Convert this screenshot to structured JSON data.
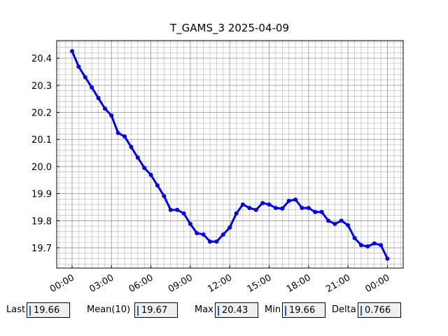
{
  "chart_data": {
    "type": "line",
    "title": "T_GAMS_3 2025-04-09",
    "x": [
      0,
      0.5,
      1,
      1.5,
      2,
      2.5,
      3,
      3.5,
      4,
      4.5,
      5,
      5.5,
      6,
      6.5,
      7,
      7.5,
      8,
      8.5,
      9,
      9.5,
      10,
      10.5,
      11,
      11.5,
      12,
      12.5,
      13,
      13.5,
      14,
      14.5,
      15,
      15.5,
      16,
      16.5,
      17,
      17.5,
      18,
      18.5,
      19,
      19.5,
      20,
      20.5,
      21,
      21.5,
      22,
      22.5,
      23,
      23.5,
      24
    ],
    "series": [
      {
        "color": "#0000ee",
        "values": [
          20.426,
          20.369,
          20.33,
          20.292,
          20.253,
          20.214,
          20.188,
          20.124,
          20.111,
          20.072,
          20.033,
          19.995,
          19.969,
          19.93,
          19.891,
          19.84,
          19.84,
          19.827,
          19.788,
          19.754,
          19.749,
          19.723,
          19.723,
          19.749,
          19.775,
          19.827,
          19.86,
          19.847,
          19.84,
          19.865,
          19.86,
          19.847,
          19.845,
          19.873,
          19.878,
          19.847,
          19.847,
          19.832,
          19.832,
          19.8,
          19.788,
          19.8,
          19.783,
          19.736,
          19.71,
          19.705,
          19.716,
          19.71,
          19.66
        ]
      }
    ],
    "xlim": [
      -1.17,
      25.2
    ],
    "ylim": [
      19.625,
      20.465
    ],
    "xticks": [
      {
        "value": 0,
        "label": "00:00"
      },
      {
        "value": 3,
        "label": "03:00"
      },
      {
        "value": 6,
        "label": "06:00"
      },
      {
        "value": 9,
        "label": "09:00"
      },
      {
        "value": 12,
        "label": "12:00"
      },
      {
        "value": 15,
        "label": "15:00"
      },
      {
        "value": 18,
        "label": "18:00"
      },
      {
        "value": 21,
        "label": "21:00"
      },
      {
        "value": 24,
        "label": "00:00"
      }
    ],
    "yticks": [
      19.7,
      19.8,
      19.9,
      20.0,
      20.1,
      20.2,
      20.3,
      20.4
    ],
    "grid": true,
    "minor_grid": true
  },
  "stats": [
    {
      "label": "Last",
      "value": "19.66"
    },
    {
      "label": "Mean(10)",
      "value": "19.67"
    },
    {
      "label": "Max",
      "value": "20.43"
    },
    {
      "label": "Min",
      "value": "19.66"
    },
    {
      "label": "Delta",
      "value": "0.766"
    }
  ]
}
